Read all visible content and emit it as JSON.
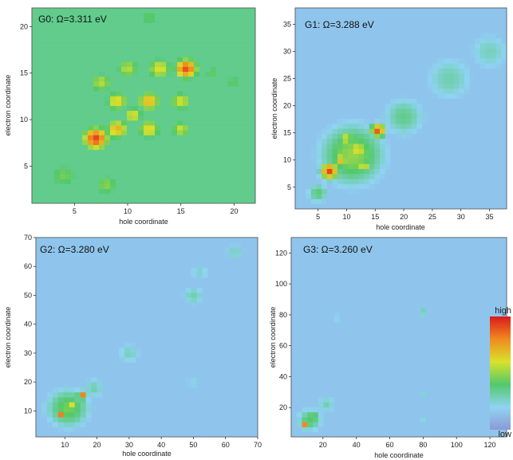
{
  "chart_data": [
    {
      "type": "heatmap",
      "title": "G0: Ω=3.311 eV",
      "xlabel": "hole coordinate",
      "ylabel": "electron coordinate",
      "xlim": [
        1,
        22
      ],
      "ylim": [
        1,
        22
      ],
      "xticks": [
        5,
        10,
        15,
        20
      ],
      "yticks": [
        5,
        10,
        15,
        20
      ],
      "background": 0.35,
      "blobs": [
        {
          "x": 7,
          "y": 8,
          "value": 0.92,
          "spread": 1.0
        },
        {
          "x": 15.5,
          "y": 15.5,
          "value": 0.9,
          "spread": 0.9
        },
        {
          "x": 9,
          "y": 9,
          "value": 0.72,
          "spread": 0.9
        },
        {
          "x": 12,
          "y": 12,
          "value": 0.72,
          "spread": 0.9
        },
        {
          "x": 9,
          "y": 12,
          "value": 0.65,
          "spread": 0.9
        },
        {
          "x": 12,
          "y": 9,
          "value": 0.65,
          "spread": 0.9
        },
        {
          "x": 10.5,
          "y": 10.5,
          "value": 0.62,
          "spread": 0.8
        },
        {
          "x": 13,
          "y": 15.5,
          "value": 0.62,
          "spread": 1.0
        },
        {
          "x": 15,
          "y": 12,
          "value": 0.6,
          "spread": 0.9
        },
        {
          "x": 15,
          "y": 9,
          "value": 0.58,
          "spread": 0.8
        },
        {
          "x": 7.5,
          "y": 14,
          "value": 0.55,
          "spread": 1.0
        },
        {
          "x": 10,
          "y": 15.5,
          "value": 0.55,
          "spread": 1.0
        },
        {
          "x": 4,
          "y": 4,
          "value": 0.45,
          "spread": 1.5
        },
        {
          "x": 8,
          "y": 3,
          "value": 0.48,
          "spread": 1.2
        },
        {
          "x": 18,
          "y": 15,
          "value": 0.42,
          "spread": 1.0
        },
        {
          "x": 20,
          "y": 14,
          "value": 0.42,
          "spread": 1.0
        },
        {
          "x": 12,
          "y": 21,
          "value": 0.42,
          "spread": 1.2
        }
      ]
    },
    {
      "type": "heatmap",
      "title": "G1: Ω=3.288 eV",
      "xlabel": "hole coordinate",
      "ylabel": "electron coordinate",
      "xlim": [
        1,
        38
      ],
      "ylim": [
        1,
        38
      ],
      "xticks": [
        5,
        10,
        15,
        20,
        25,
        30,
        35
      ],
      "yticks": [
        5,
        10,
        15,
        20,
        25,
        30,
        35
      ],
      "background": 0.15,
      "blobs": [
        {
          "x": 7,
          "y": 8,
          "value": 0.92,
          "spread": 1.2
        },
        {
          "x": 15.5,
          "y": 15.5,
          "value": 0.9,
          "spread": 1.0
        },
        {
          "x": 9,
          "y": 10,
          "value": 0.7,
          "spread": 1.0
        },
        {
          "x": 12,
          "y": 12,
          "value": 0.7,
          "spread": 1.0
        },
        {
          "x": 10,
          "y": 14,
          "value": 0.62,
          "spread": 1.0
        },
        {
          "x": 13,
          "y": 9,
          "value": 0.62,
          "spread": 1.0
        },
        {
          "x": 11,
          "y": 11,
          "value": 0.5,
          "spread": 4.5
        },
        {
          "x": 5,
          "y": 4,
          "value": 0.38,
          "spread": 1.5
        },
        {
          "x": 20,
          "y": 18,
          "value": 0.35,
          "spread": 3.0
        },
        {
          "x": 28,
          "y": 25,
          "value": 0.3,
          "spread": 3.5
        },
        {
          "x": 35,
          "y": 30,
          "value": 0.28,
          "spread": 3.0
        }
      ]
    },
    {
      "type": "heatmap",
      "title": "G2: Ω=3.280 eV",
      "xlabel": "hole coordinate",
      "ylabel": "electron coordinate",
      "xlim": [
        1,
        70
      ],
      "ylim": [
        1,
        70
      ],
      "xticks": [
        10,
        20,
        30,
        40,
        50,
        60,
        70
      ],
      "yticks": [
        10,
        20,
        30,
        40,
        50,
        60,
        70
      ],
      "background": 0.15,
      "blobs": [
        {
          "x": 9,
          "y": 9,
          "value": 0.85,
          "spread": 1.2
        },
        {
          "x": 15.5,
          "y": 15.5,
          "value": 0.82,
          "spread": 1.2
        },
        {
          "x": 12,
          "y": 12,
          "value": 0.62,
          "spread": 1.6
        },
        {
          "x": 11,
          "y": 11,
          "value": 0.45,
          "spread": 5.5
        },
        {
          "x": 19,
          "y": 18,
          "value": 0.3,
          "spread": 3.0
        },
        {
          "x": 30,
          "y": 30,
          "value": 0.28,
          "spread": 3.0
        },
        {
          "x": 50,
          "y": 50,
          "value": 0.3,
          "spread": 3.0
        },
        {
          "x": 52,
          "y": 58,
          "value": 0.26,
          "spread": 2.5
        },
        {
          "x": 63,
          "y": 65,
          "value": 0.28,
          "spread": 2.5
        },
        {
          "x": 50,
          "y": 20,
          "value": 0.24,
          "spread": 2.0
        }
      ]
    },
    {
      "type": "heatmap",
      "title": "G3: Ω=3.260 eV",
      "xlabel": "hole coordinate",
      "ylabel": "electron coordinate",
      "xlim": [
        1,
        130
      ],
      "ylim": [
        1,
        130
      ],
      "xticks": [
        20,
        40,
        60,
        80,
        100,
        120
      ],
      "yticks": [
        20,
        40,
        60,
        80,
        100,
        120
      ],
      "background": 0.15,
      "blobs": [
        {
          "x": 9,
          "y": 9,
          "value": 0.8,
          "spread": 2.0
        },
        {
          "x": 14,
          "y": 14,
          "value": 0.55,
          "spread": 2.5
        },
        {
          "x": 12,
          "y": 12,
          "value": 0.4,
          "spread": 6.0
        },
        {
          "x": 22,
          "y": 22,
          "value": 0.3,
          "spread": 4.5
        },
        {
          "x": 80,
          "y": 82,
          "value": 0.3,
          "spread": 3.0
        },
        {
          "x": 28,
          "y": 78,
          "value": 0.24,
          "spread": 2.5
        },
        {
          "x": 80,
          "y": 28,
          "value": 0.24,
          "spread": 2.5
        },
        {
          "x": 80,
          "y": 12,
          "value": 0.22,
          "spread": 2.5
        }
      ]
    }
  ],
  "colorbar": {
    "high_label": "high",
    "low_label": "low",
    "colors": [
      "#8d99d8",
      "#8fd4f2",
      "#52c96a",
      "#d9e22a",
      "#f08a20",
      "#d91a1a"
    ]
  }
}
